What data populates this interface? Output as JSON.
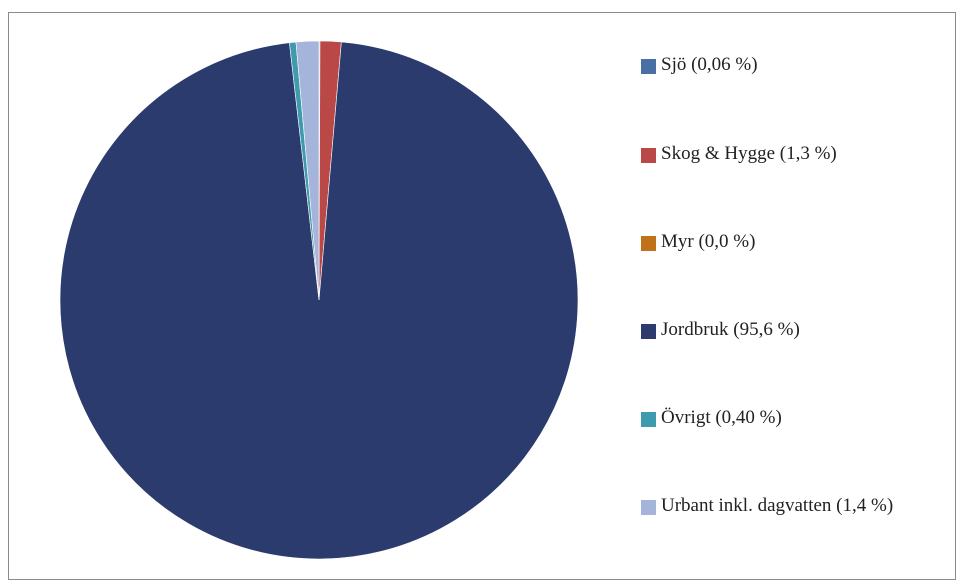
{
  "chart_data": {
    "type": "pie",
    "title": "",
    "slices": [
      {
        "label": "Sjö (0,06 %)",
        "value": 0.06,
        "color": "#4a6fa5"
      },
      {
        "label": "Skog & Hygge (1,3 %)",
        "value": 1.3,
        "color": "#b94846"
      },
      {
        "label": "Myr (0,0 %)",
        "value": 0.0,
        "color": "#c07218"
      },
      {
        "label": "Jordbruk (95,6 %)",
        "value": 95.6,
        "color": "#2b3b6e"
      },
      {
        "label": "Övrigt (0,40 %)",
        "value": 0.4,
        "color": "#3e9aad"
      },
      {
        "label": "Urbant inkl. dagvatten (1,4 %)",
        "value": 1.4,
        "color": "#a4b4da"
      }
    ],
    "legend_position": "right"
  }
}
